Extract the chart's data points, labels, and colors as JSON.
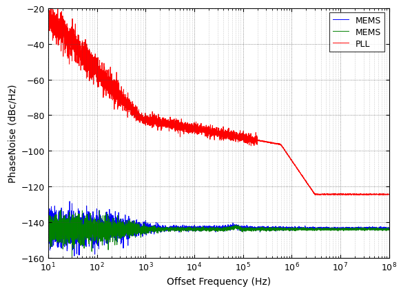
{
  "title": "",
  "xlabel": "Offset Frequency (Hz)",
  "ylabel": "PhaseNoise (dBc/Hz)",
  "xlim": [
    10.0,
    100000000.0
  ],
  "ylim": [
    -160,
    -20
  ],
  "yticks": [
    -160,
    -140,
    -120,
    -100,
    -80,
    -60,
    -40,
    -20
  ],
  "legend": [
    "MEMS",
    "MEMS",
    "PLL"
  ],
  "colors": [
    "#0000ff",
    "#008000",
    "#ff0000"
  ],
  "background_color": "#ffffff",
  "grid_color": "#444444",
  "figsize": [
    5.82,
    4.27
  ],
  "dpi": 100
}
